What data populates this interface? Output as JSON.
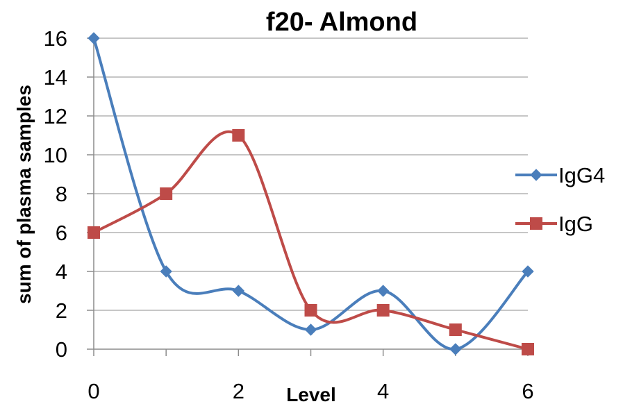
{
  "chart_data": {
    "type": "line",
    "title": "f20- Almond",
    "xlabel": "Level",
    "ylabel": "sum of plasma samples",
    "x": [
      0,
      1,
      2,
      3,
      4,
      5,
      6
    ],
    "x_ticks": [
      "0",
      "2",
      "4",
      "6"
    ],
    "y_ticks": [
      "0",
      "2",
      "4",
      "6",
      "8",
      "10",
      "12",
      "14",
      "16"
    ],
    "xlim": [
      0,
      6
    ],
    "ylim": [
      0,
      16
    ],
    "grid": "horizontal",
    "smooth": true,
    "legend_position": "right",
    "series": [
      {
        "name": "IgG4",
        "values": [
          16,
          4,
          3,
          1,
          3,
          0,
          4
        ],
        "color": "#4a7ebb",
        "marker": "diamond"
      },
      {
        "name": "IgG",
        "values": [
          6,
          8,
          11,
          2,
          2,
          1,
          0
        ],
        "color": "#be4b48",
        "marker": "square"
      }
    ]
  }
}
